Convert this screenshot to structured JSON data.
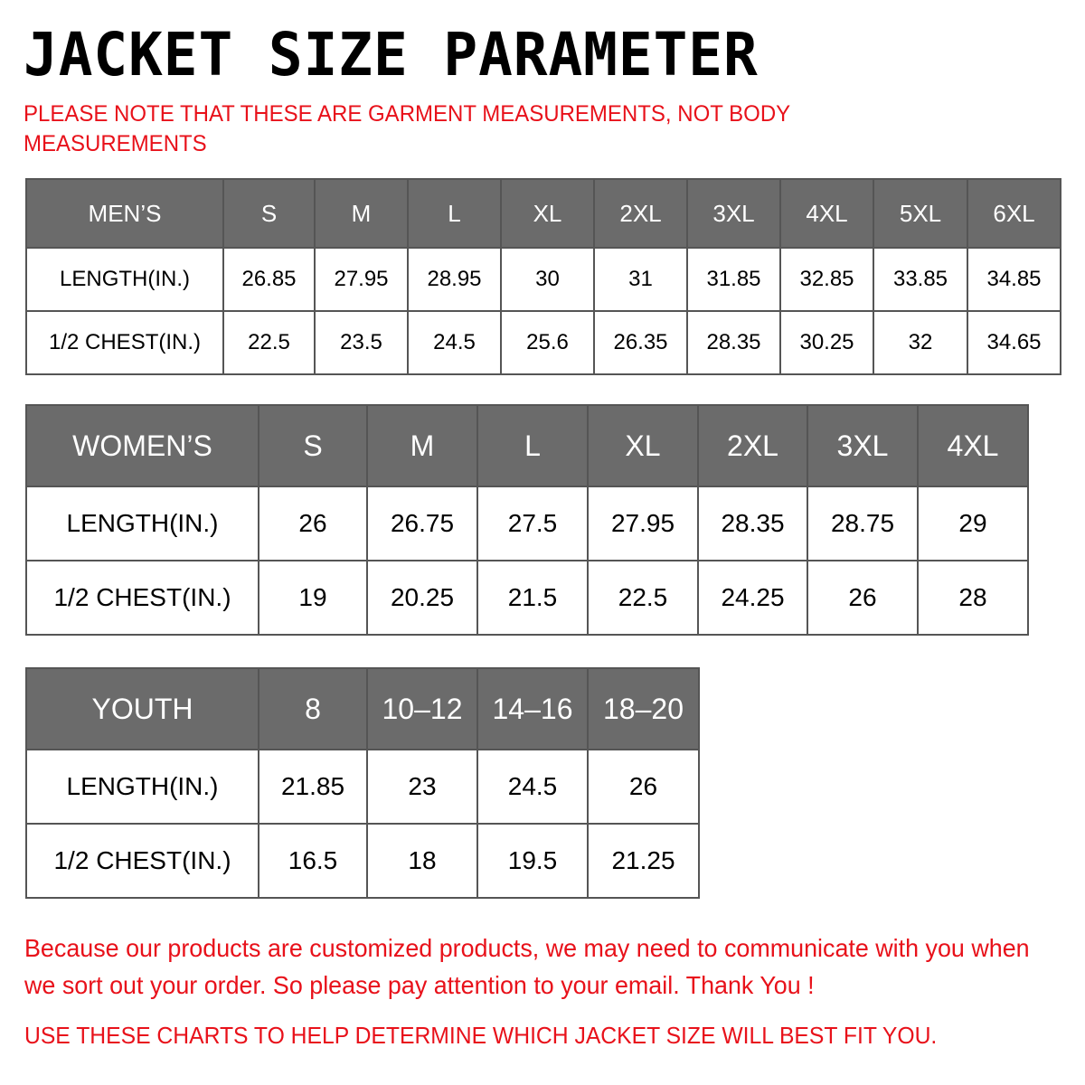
{
  "title": "JACKET SIZE PARAMETER",
  "note": "PLEASE NOTE THAT THESE ARE GARMENT MEASUREMENTS, NOT BODY MEASUREMENTS",
  "colors": {
    "header_bg": "#6b6b6b",
    "accent_red": "#e8111a"
  },
  "tables": {
    "men": {
      "header": [
        "MEN’S",
        "S",
        "M",
        "L",
        "XL",
        "2XL",
        "3XL",
        "4XL",
        "5XL",
        "6XL"
      ],
      "rows": [
        [
          "LENGTH(IN.)",
          "26.85",
          "27.95",
          "28.95",
          "30",
          "31",
          "31.85",
          "32.85",
          "33.85",
          "34.85"
        ],
        [
          "1/2 CHEST(IN.)",
          "22.5",
          "23.5",
          "24.5",
          "25.6",
          "26.35",
          "28.35",
          "30.25",
          "32",
          "34.65"
        ]
      ]
    },
    "women": {
      "header": [
        "WOMEN’S",
        "S",
        "M",
        "L",
        "XL",
        "2XL",
        "3XL",
        "4XL"
      ],
      "rows": [
        [
          "LENGTH(IN.)",
          "26",
          "26.75",
          "27.5",
          "27.95",
          "28.35",
          "28.75",
          "29"
        ],
        [
          "1/2 CHEST(IN.)",
          "19",
          "20.25",
          "21.5",
          "22.5",
          "24.25",
          "26",
          "28"
        ]
      ]
    },
    "youth": {
      "header": [
        "YOUTH",
        "8",
        "10–12",
        "14–16",
        "18–20"
      ],
      "rows": [
        [
          "LENGTH(IN.)",
          "21.85",
          "23",
          "24.5",
          "26"
        ],
        [
          "1/2 CHEST(IN.)",
          "16.5",
          "18",
          "19.5",
          "21.25"
        ]
      ]
    }
  },
  "footer": {
    "message": "Because our products are customized products, we may need to communicate with you when we sort out your order. So please pay attention to your email. Thank You !",
    "advice": "USE THESE CHARTS TO HELP DETERMINE WHICH JACKET SIZE WILL BEST FIT YOU."
  }
}
